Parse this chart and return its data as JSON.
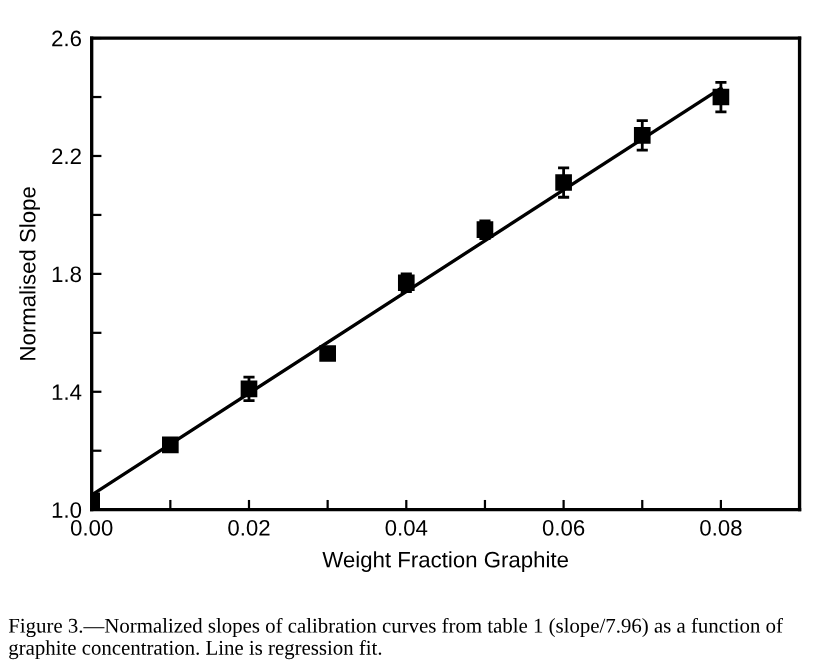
{
  "chart_data": {
    "type": "scatter",
    "xlabel": "Weight Fraction Graphite",
    "ylabel": "Normalised Slope",
    "x": [
      0.0,
      0.01,
      0.02,
      0.03,
      0.04,
      0.05,
      0.06,
      0.07,
      0.08
    ],
    "series": [
      {
        "color": "#000000",
        "values": [
          1.03,
          1.22,
          1.41,
          1.53,
          1.77,
          1.95,
          2.11,
          2.27,
          2.4
        ],
        "errors": [
          0.02,
          0.02,
          0.04,
          0.02,
          0.03,
          0.03,
          0.05,
          0.05,
          0.05
        ],
        "marker": "square"
      },
      {
        "type": "line",
        "color": "#000000",
        "x": [
          0.0,
          0.08
        ],
        "values": [
          1.05,
          2.43
        ],
        "marker": "none",
        "line_style": "solid"
      }
    ],
    "xlim": [
      0.0,
      0.09
    ],
    "ylim": [
      1.0,
      2.6
    ],
    "xticks": [
      {
        "value": 0.0,
        "label": "0.00"
      },
      {
        "value": 0.01,
        "label": null
      },
      {
        "value": 0.02,
        "label": "0.02"
      },
      {
        "value": 0.03,
        "label": null
      },
      {
        "value": 0.04,
        "label": "0.04"
      },
      {
        "value": 0.05,
        "label": null
      },
      {
        "value": 0.06,
        "label": "0.06"
      },
      {
        "value": 0.07,
        "label": null
      },
      {
        "value": 0.08,
        "label": "0.08"
      }
    ],
    "yticks": [
      {
        "value": 1.0,
        "label": "1.0"
      },
      {
        "value": 1.2,
        "label": null
      },
      {
        "value": 1.4,
        "label": "1.4"
      },
      {
        "value": 1.6,
        "label": null
      },
      {
        "value": 1.8,
        "label": "1.8"
      },
      {
        "value": 2.0,
        "label": null
      },
      {
        "value": 2.2,
        "label": "2.2"
      },
      {
        "value": 2.4,
        "label": null
      },
      {
        "value": 2.6,
        "label": "2.6"
      }
    ],
    "grid": false,
    "legend": false,
    "annotations": [
      "Figure 3.—Normalized slopes of calibration curves from table 1 (slope/7.96) as a function of graphite concentration. Line is regression fit."
    ]
  }
}
